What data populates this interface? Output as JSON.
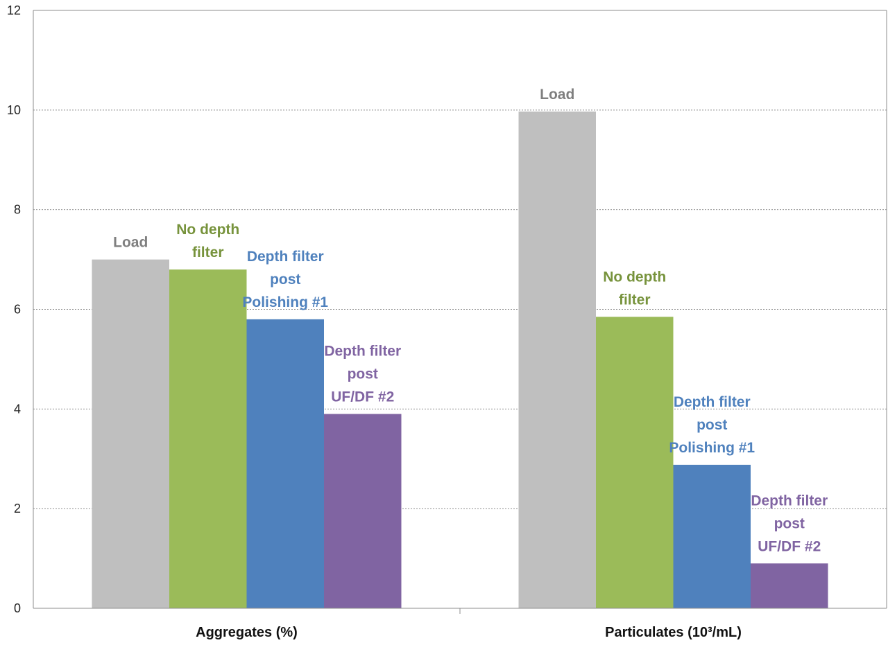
{
  "chart_data": {
    "type": "bar",
    "title": "",
    "xlabel": "",
    "ylabel": "",
    "ylim": [
      0,
      12
    ],
    "yticks": [
      0,
      2,
      4,
      6,
      8,
      10,
      12
    ],
    "grid": true,
    "legend": "none",
    "categories": [
      "Aggregates (%)",
      "Particulates (10³/mL)"
    ],
    "series": [
      {
        "label_lines": [
          "Load"
        ],
        "color": "#bfbfbf",
        "label_color": "#7f7f7f",
        "values": [
          7.0,
          9.97
        ]
      },
      {
        "label_lines": [
          "No depth",
          "filter"
        ],
        "color": "#9bbb59",
        "label_color": "#77933c",
        "values": [
          6.8,
          5.85
        ]
      },
      {
        "label_lines": [
          "Depth filter",
          "post",
          "Polishing #1"
        ],
        "color": "#4f81bd",
        "label_color": "#4f81bd",
        "values": [
          5.8,
          2.88
        ]
      },
      {
        "label_lines": [
          "Depth filter",
          "post",
          "UF/DF #2"
        ],
        "color": "#8064a2",
        "label_color": "#8064a2",
        "values": [
          3.9,
          0.9
        ]
      }
    ]
  }
}
